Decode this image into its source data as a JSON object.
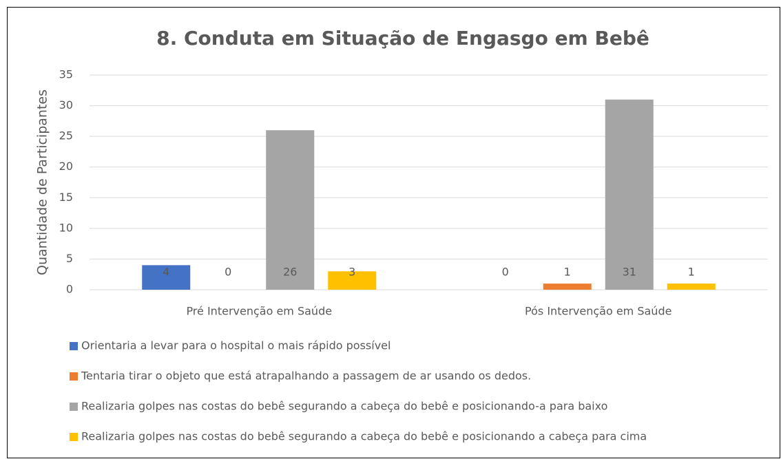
{
  "chart_data": {
    "type": "bar",
    "title": "8. Conduta em Situação de Engasgo em Bebê",
    "y_label": "Quantidade de Participantes",
    "categories": [
      "Pré Intervenção em Saúde",
      "Pós Intervenção em Saúde"
    ],
    "series": [
      {
        "name": "Orientaria a levar para o hospital o mais rápido possível",
        "color": "#4472c4",
        "values": [
          4,
          0
        ]
      },
      {
        "name": "Tentaria tirar o objeto que está atrapalhando a passagem de ar usando os dedos.",
        "color": "#ed7d31",
        "values": [
          0,
          1
        ]
      },
      {
        "name": "Realizaria golpes nas costas do bebê segurando a cabeça do bebê e posicionando-a para baixo",
        "color": "#a5a5a5",
        "values": [
          26,
          31
        ]
      },
      {
        "name": "Realizaria golpes nas costas do bebê segurando a cabeça do bebê e posicionando a cabeça para cima",
        "color": "#ffc000",
        "values": [
          3,
          1
        ]
      }
    ],
    "ylim": [
      0,
      35
    ],
    "yticks": [
      0,
      5,
      10,
      15,
      20,
      25,
      30,
      35
    ],
    "grid": true,
    "legend": "bottom"
  }
}
